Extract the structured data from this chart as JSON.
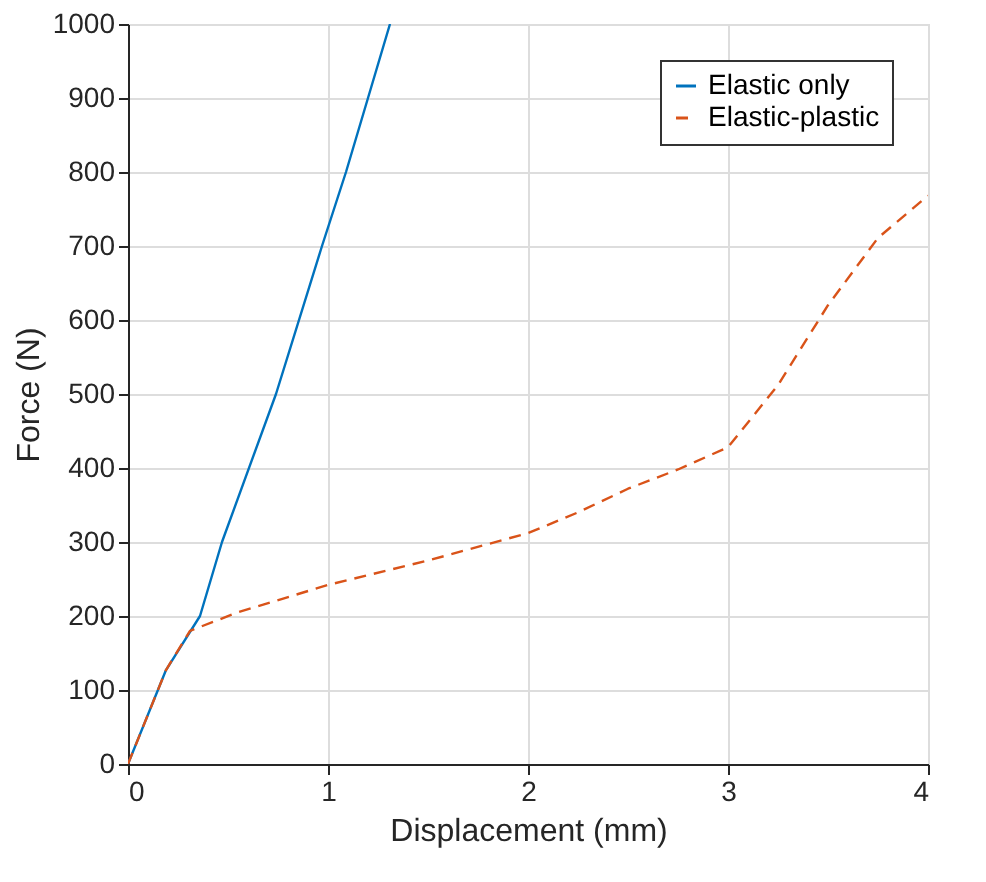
{
  "chart_data": {
    "type": "line",
    "xlabel": "Displacement (mm)",
    "ylabel": "Force (N)",
    "xlim": [
      0,
      4
    ],
    "xticks": [
      0,
      1,
      2,
      3,
      4
    ],
    "ylim": [
      0,
      1000
    ],
    "yticks": [
      0,
      100,
      200,
      300,
      400,
      500,
      600,
      700,
      800,
      900,
      1000
    ],
    "grid": true,
    "legend": "top right",
    "series": [
      {
        "name": "Elastic only",
        "color": "#0072bd",
        "line_style": "solid",
        "x": [
          0,
          0.19,
          0.36,
          0.47,
          0.74,
          0.97,
          1.09,
          1.2,
          1.31
        ],
        "values": [
          0,
          127,
          200,
          300,
          500,
          700,
          800,
          900,
          1000
        ]
      },
      {
        "name": "Elastic-plastic",
        "color": "#d95319",
        "line_style": "dashed",
        "x": [
          0,
          0.19,
          0.31,
          0.55,
          1,
          1.5,
          2,
          2.25,
          2.5,
          2.75,
          3,
          3.25,
          3.5,
          3.75,
          4
        ],
        "values": [
          0,
          127,
          180,
          205,
          242,
          275,
          312,
          340,
          372,
          398,
          428,
          512,
          620,
          711,
          768
        ]
      }
    ]
  }
}
